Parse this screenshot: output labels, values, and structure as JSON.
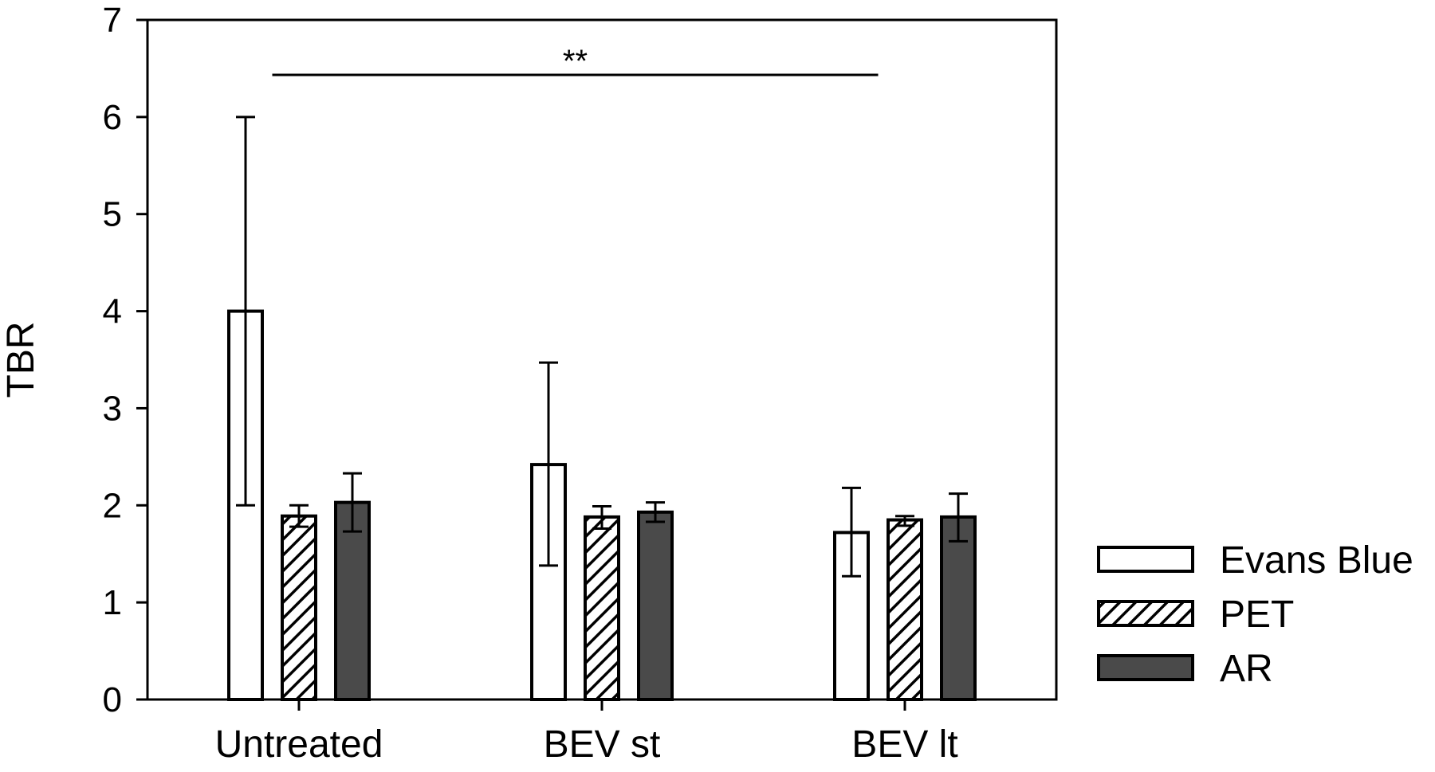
{
  "chart_data": {
    "type": "bar",
    "title": "",
    "xlabel": "",
    "ylabel": "TBR",
    "ylim": [
      0,
      7
    ],
    "yticks": [
      "0",
      "1",
      "2",
      "3",
      "4",
      "5",
      "6",
      "7"
    ],
    "categories": [
      "Untreated",
      "BEV st",
      "BEV lt"
    ],
    "series": [
      {
        "name": "Evans Blue",
        "values": [
          4.0,
          2.42,
          1.72
        ],
        "err_low": [
          2.0,
          1.38,
          1.27
        ],
        "err_high": [
          6.0,
          3.47,
          2.18
        ],
        "fill": "#ffffff",
        "pattern": "none"
      },
      {
        "name": "PET",
        "values": [
          1.89,
          1.88,
          1.85
        ],
        "err_low": [
          1.78,
          1.76,
          1.79
        ],
        "err_high": [
          2.0,
          1.99,
          1.89
        ],
        "fill": "#ffffff",
        "pattern": "hatch"
      },
      {
        "name": "AR",
        "values": [
          2.03,
          1.93,
          1.88
        ],
        "err_low": [
          1.73,
          1.83,
          1.63
        ],
        "err_high": [
          2.33,
          2.03,
          2.12
        ],
        "fill": "#4a4a4a",
        "pattern": "none"
      }
    ],
    "annotations": [
      {
        "text": "**",
        "from_category": "Untreated",
        "to_category": "BEV lt",
        "y": 6.45
      }
    ],
    "legend": {
      "position": "right"
    },
    "grid": false,
    "colors": {
      "axis": "#000000",
      "dark_bar": "#4a4a4a",
      "light_bar": "#ffffff"
    }
  }
}
